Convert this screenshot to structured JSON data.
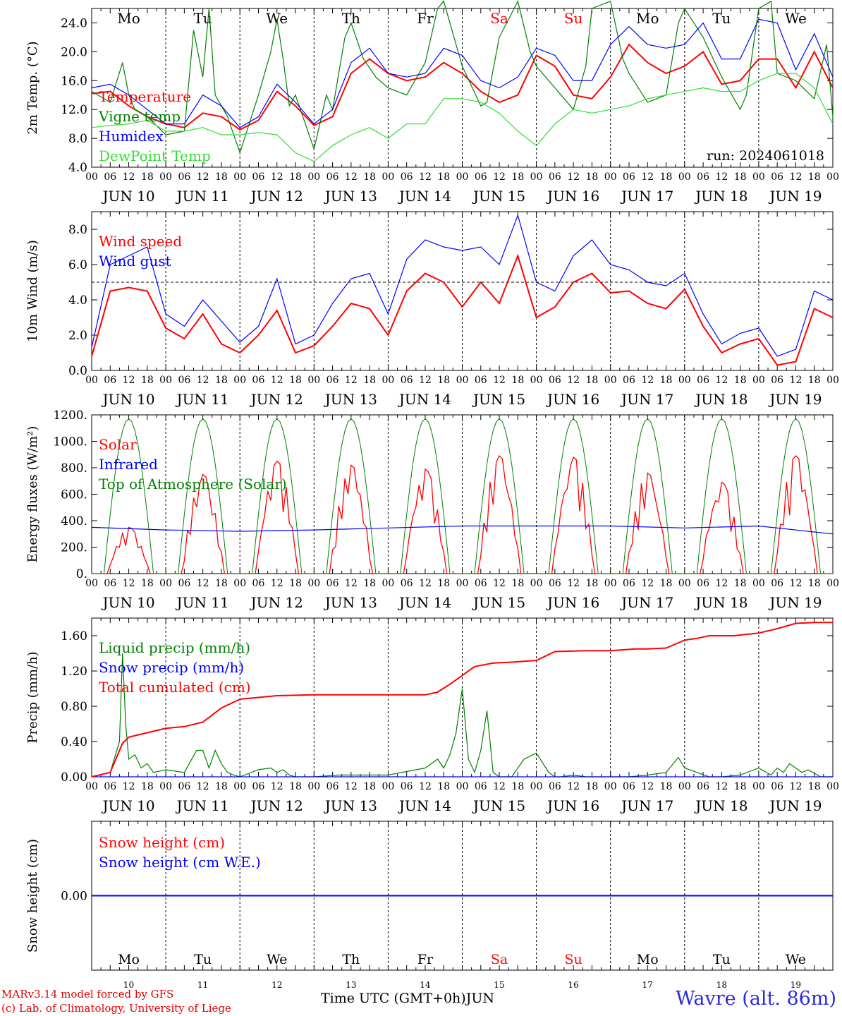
{
  "colors": {
    "red": "#ff0000",
    "green": "#008000",
    "blue": "#0000ff",
    "lime": "#33dd33",
    "purple": "#7f007f",
    "weekend": "#ff0000"
  },
  "time_axis": {
    "days": [
      "JUN 10",
      "JUN 11",
      "JUN 12",
      "JUN 13",
      "JUN 14",
      "JUN 15",
      "JUN 16",
      "JUN 17",
      "JUN 18",
      "JUN 19"
    ],
    "weekdays": [
      "Mo",
      "Tu",
      "We",
      "Th",
      "Fr",
      "Sa",
      "Su",
      "Mo",
      "Tu",
      "We"
    ],
    "weekend_index": [
      5,
      6
    ],
    "hour_labels": [
      "00",
      "06",
      "12",
      "18"
    ],
    "final_hour_label": "00",
    "day_numbers": [
      "10",
      "11",
      "12",
      "13",
      "14",
      "15",
      "16",
      "17",
      "18",
      "19"
    ]
  },
  "footer": {
    "credit_1": "MARv3.14 model forced by GFS",
    "credit_2": "(c) Lab. of Climatology, University of Liege",
    "xlabel": "Time UTC (GMT+0h)",
    "month": "JUN",
    "station": "Wavre (alt. 86m)"
  },
  "chart_data": [
    {
      "type": "line",
      "ylabel": "2m Temp. (°C)",
      "ylim": [
        4,
        26
      ],
      "yticks": [
        "4.0",
        "8.0",
        "12.0",
        "16.0",
        "20.0",
        "24.0"
      ],
      "annotation": "run: 2024061018",
      "series": [
        {
          "name": "Temperature",
          "color": "red",
          "x": [
            0,
            6,
            12,
            18,
            24,
            30,
            36,
            42,
            48,
            54,
            60,
            66,
            72,
            78,
            84,
            90,
            96,
            102,
            108,
            114,
            120,
            126,
            132,
            138,
            144,
            150,
            156,
            162,
            168,
            174,
            180,
            186,
            192,
            198,
            204,
            210,
            216,
            222,
            228,
            234,
            240
          ],
          "y": [
            14.2,
            14.5,
            12.5,
            11.0,
            10.0,
            9.5,
            11.5,
            11.0,
            9.2,
            10.5,
            14.5,
            12.5,
            9.8,
            11.0,
            17.0,
            19.0,
            17.0,
            16.0,
            16.5,
            18.5,
            17.0,
            14.5,
            13.0,
            14.0,
            19.5,
            18.0,
            14.0,
            13.5,
            16.5,
            21.0,
            18.5,
            17.0,
            18.0,
            20.0,
            15.5,
            16.0,
            19.0,
            19.0,
            15.0,
            20.0,
            15.0
          ]
        },
        {
          "name": "Vigne temp",
          "color": "green",
          "x": [
            0,
            6,
            10,
            12,
            14,
            18,
            24,
            30,
            33,
            36,
            38,
            40,
            44,
            48,
            54,
            58,
            60,
            62,
            64,
            66,
            72,
            76,
            78,
            82,
            84,
            88,
            92,
            96,
            102,
            108,
            112,
            114,
            120,
            126,
            128,
            132,
            138,
            142,
            144,
            150,
            156,
            160,
            162,
            168,
            172,
            174,
            180,
            186,
            190,
            192,
            198,
            204,
            210,
            212,
            216,
            220,
            222,
            228,
            234,
            238,
            240
          ],
          "y": [
            14.5,
            13.0,
            18.5,
            14.0,
            12.0,
            11.0,
            8.5,
            9.0,
            23.0,
            16.5,
            26.0,
            14.0,
            11.0,
            6.0,
            14.0,
            20.0,
            24.5,
            19.0,
            12.5,
            14.0,
            6.5,
            14.0,
            12.0,
            22.0,
            24.0,
            19.0,
            16.5,
            15.0,
            14.0,
            18.5,
            26.0,
            27.0,
            18.0,
            12.5,
            13.0,
            22.0,
            27.0,
            20.0,
            18.0,
            15.0,
            12.0,
            18.0,
            26.0,
            27.0,
            19.0,
            17.0,
            13.0,
            14.0,
            24.0,
            26.0,
            22.0,
            16.5,
            12.0,
            14.0,
            26.0,
            27.0,
            17.0,
            16.0,
            13.5,
            21.0,
            11.0
          ]
        },
        {
          "name": "Humidex",
          "color": "blue",
          "x": [
            0,
            6,
            12,
            18,
            24,
            30,
            36,
            42,
            48,
            54,
            60,
            66,
            72,
            78,
            84,
            90,
            96,
            102,
            108,
            114,
            120,
            126,
            132,
            138,
            144,
            150,
            156,
            162,
            168,
            174,
            180,
            186,
            192,
            198,
            204,
            210,
            216,
            222,
            228,
            234,
            240
          ],
          "y": [
            15.0,
            15.5,
            14.0,
            12.0,
            10.0,
            10.0,
            14.0,
            12.5,
            9.5,
            11.0,
            15.5,
            13.0,
            10.0,
            12.0,
            18.5,
            20.5,
            17.0,
            16.5,
            17.0,
            20.5,
            19.5,
            16.0,
            15.0,
            16.5,
            20.5,
            19.5,
            16.0,
            16.0,
            21.0,
            23.5,
            21.0,
            20.5,
            21.0,
            24.0,
            19.0,
            19.0,
            24.5,
            24.0,
            17.5,
            22.5,
            16.5
          ]
        },
        {
          "name": "DewPoint Temp",
          "color": "lime",
          "x": [
            0,
            6,
            12,
            18,
            24,
            30,
            36,
            42,
            48,
            54,
            60,
            66,
            72,
            78,
            84,
            90,
            96,
            102,
            108,
            114,
            120,
            126,
            132,
            138,
            144,
            150,
            156,
            162,
            168,
            174,
            180,
            186,
            192,
            198,
            204,
            210,
            216,
            222,
            228,
            234,
            240
          ],
          "y": [
            9.5,
            9.8,
            10.0,
            10.5,
            9.0,
            9.0,
            9.5,
            8.5,
            8.5,
            8.8,
            8.5,
            6.0,
            4.8,
            7.0,
            8.5,
            9.5,
            8.0,
            10.0,
            10.0,
            13.5,
            13.5,
            13.0,
            11.5,
            9.0,
            7.0,
            10.0,
            12.0,
            11.5,
            12.0,
            12.5,
            13.5,
            14.0,
            14.5,
            15.0,
            14.5,
            14.5,
            16.0,
            17.0,
            17.0,
            15.0,
            10.0
          ]
        }
      ]
    },
    {
      "type": "line",
      "ylabel": "10m Wind (m/s)",
      "ylim": [
        0,
        9
      ],
      "yticks": [
        "0.0",
        "2.0",
        "4.0",
        "6.0",
        "8.0"
      ],
      "reference_line": 5,
      "series": [
        {
          "name": "Wind speed",
          "color": "red",
          "x": [
            0,
            6,
            12,
            18,
            24,
            30,
            36,
            42,
            48,
            54,
            60,
            66,
            72,
            78,
            84,
            90,
            96,
            102,
            108,
            114,
            120,
            126,
            132,
            138,
            144,
            150,
            156,
            162,
            168,
            174,
            180,
            186,
            192,
            198,
            204,
            210,
            216,
            222,
            228,
            234,
            240
          ],
          "y": [
            0.8,
            4.5,
            4.7,
            4.5,
            2.4,
            1.8,
            3.2,
            1.5,
            1.0,
            2.0,
            3.4,
            1.0,
            1.4,
            2.5,
            3.8,
            3.5,
            2.0,
            4.5,
            5.5,
            5.0,
            3.6,
            5.0,
            3.8,
            6.5,
            3.0,
            3.6,
            5.0,
            5.5,
            4.4,
            4.5,
            3.8,
            3.5,
            4.6,
            2.5,
            1.0,
            1.5,
            1.8,
            0.3,
            0.5,
            3.5,
            3.0
          ]
        },
        {
          "name": "Wind gust",
          "color": "blue",
          "x": [
            0,
            6,
            12,
            18,
            24,
            30,
            36,
            42,
            48,
            54,
            60,
            66,
            72,
            78,
            84,
            90,
            96,
            102,
            108,
            114,
            120,
            126,
            132,
            138,
            144,
            150,
            156,
            162,
            168,
            174,
            180,
            186,
            192,
            198,
            204,
            210,
            216,
            222,
            228,
            234,
            240
          ],
          "y": [
            1.3,
            6.0,
            6.5,
            7.0,
            3.2,
            2.5,
            4.0,
            2.8,
            1.6,
            2.5,
            5.2,
            1.5,
            2.0,
            3.8,
            5.2,
            5.5,
            3.2,
            6.3,
            7.4,
            7.0,
            6.8,
            7.0,
            6.0,
            8.8,
            5.0,
            4.5,
            6.5,
            7.4,
            6.0,
            5.7,
            5.0,
            4.8,
            5.5,
            3.2,
            1.5,
            2.1,
            2.4,
            0.8,
            1.2,
            4.5,
            4.0
          ]
        }
      ]
    },
    {
      "type": "line",
      "ylabel": "Energy fluxes (W/m²)",
      "ylim": [
        0,
        1200
      ],
      "yticks": [
        "0.",
        "200.",
        "400.",
        "600.",
        "800.",
        "1000.",
        "1200."
      ],
      "series": [
        {
          "name": "Solar",
          "color": "red",
          "peaks": [
            350,
            750,
            850,
            820,
            790,
            890,
            880,
            760,
            690,
            890
          ]
        },
        {
          "name": "Infrared",
          "color": "blue",
          "x": [
            0,
            24,
            48,
            72,
            96,
            120,
            144,
            168,
            192,
            216,
            240
          ],
          "y": [
            350,
            330,
            320,
            330,
            345,
            360,
            360,
            360,
            345,
            360,
            300
          ]
        },
        {
          "name": "Top of Atmosphere (Solar)",
          "color": "green",
          "daily_peak": 1170,
          "sunrise_hour": 4,
          "sunset_hour": 20
        }
      ]
    },
    {
      "type": "line",
      "ylabel": "Precip (mm/h)",
      "ylim": [
        0,
        1.8
      ],
      "yticks": [
        "0.00",
        "0.40",
        "0.80",
        "1.20",
        "1.60"
      ],
      "series": [
        {
          "name": "Liquid precip (mm/h)",
          "color": "green",
          "x": [
            0,
            6,
            9,
            10,
            11,
            12,
            14,
            16,
            18,
            20,
            24,
            30,
            34,
            36,
            38,
            40,
            42,
            44,
            46,
            48,
            54,
            58,
            60,
            62,
            64,
            66,
            72,
            80,
            96,
            108,
            112,
            114,
            116,
            118,
            120,
            122,
            124,
            126,
            128,
            130,
            132,
            136,
            140,
            144,
            148,
            150,
            152,
            156,
            160,
            168,
            174,
            180,
            186,
            190,
            192,
            196,
            200,
            204,
            210,
            216,
            220,
            222,
            224,
            226,
            230,
            232,
            236,
            240
          ],
          "y": [
            0,
            0.05,
            0.4,
            1.4,
            0.6,
            0.2,
            0.25,
            0.1,
            0.15,
            0.05,
            0.08,
            0.05,
            0.3,
            0.3,
            0.1,
            0.3,
            0.15,
            0.05,
            0.02,
            0,
            0.08,
            0.1,
            0.05,
            0.08,
            0.02,
            0,
            0,
            0.02,
            0.02,
            0.1,
            0.2,
            0.1,
            0.25,
            0.5,
            1.0,
            0.2,
            0.05,
            0.3,
            0.75,
            0.05,
            0,
            0,
            0.2,
            0.27,
            0.05,
            0,
            0,
            0.02,
            0,
            0,
            0,
            0.02,
            0.05,
            0.22,
            0.1,
            0.05,
            0,
            0,
            0.02,
            0.1,
            0.02,
            0.1,
            0.05,
            0.15,
            0.05,
            0.08,
            0,
            0
          ]
        },
        {
          "name": "Snow precip (mm/h)",
          "color": "blue",
          "x": [
            0,
            240
          ],
          "y": [
            0,
            0
          ]
        },
        {
          "name": "Total cumulated (cm)",
          "color": "red",
          "x": [
            0,
            6,
            10,
            12,
            18,
            24,
            30,
            36,
            42,
            48,
            54,
            60,
            72,
            84,
            96,
            108,
            112,
            116,
            120,
            124,
            130,
            136,
            144,
            150,
            160,
            168,
            172,
            176,
            180,
            186,
            192,
            196,
            200,
            208,
            216,
            222,
            228,
            234,
            240
          ],
          "y": [
            0,
            0.05,
            0.38,
            0.45,
            0.5,
            0.55,
            0.57,
            0.62,
            0.78,
            0.88,
            0.9,
            0.92,
            0.93,
            0.93,
            0.93,
            0.93,
            0.96,
            1.05,
            1.15,
            1.25,
            1.29,
            1.3,
            1.32,
            1.42,
            1.43,
            1.43,
            1.44,
            1.45,
            1.45,
            1.46,
            1.55,
            1.57,
            1.6,
            1.6,
            1.63,
            1.68,
            1.74,
            1.75,
            1.75
          ]
        }
      ]
    },
    {
      "type": "line",
      "ylabel": "Snow height (cm)",
      "ylim": [
        -1,
        1
      ],
      "yticks": [
        "0.00"
      ],
      "series": [
        {
          "name": "Snow height (cm)",
          "color": "red",
          "x": [
            0,
            240
          ],
          "y": [
            0,
            0
          ]
        },
        {
          "name": "Snow height (cm W.E.)",
          "color": "blue",
          "x": [
            0,
            240
          ],
          "y": [
            0,
            0
          ]
        }
      ]
    }
  ]
}
